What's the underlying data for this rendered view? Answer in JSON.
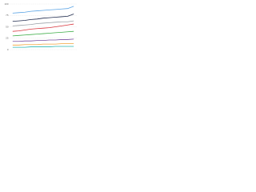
{
  "chart_data": {
    "type": "line",
    "categories": [
      null,
      null,
      null,
      null,
      null,
      null,
      null,
      null,
      null,
      null,
      null
    ],
    "series": [
      {
        "color": "#5ba4e5",
        "values": [
          80,
          81,
          82,
          84,
          85,
          86,
          87,
          88,
          89,
          90,
          95
        ]
      },
      {
        "color": "#1f2a4d",
        "values": [
          62,
          63,
          64,
          66,
          67,
          69,
          70,
          71,
          72,
          73,
          78
        ]
      },
      {
        "color": "#9aa0a6",
        "values": [
          52,
          53,
          54,
          55,
          57,
          58,
          59,
          60,
          61,
          61,
          63
        ]
      },
      {
        "color": "#d9363e",
        "values": [
          40,
          41,
          43,
          45,
          46,
          47,
          48,
          50,
          52,
          54,
          56
        ]
      },
      {
        "color": "#3fae49",
        "values": [
          30,
          31,
          32,
          33,
          34,
          35,
          36,
          37,
          38,
          39,
          40
        ]
      },
      {
        "color": "#7b4fa0",
        "values": [
          18,
          18,
          19,
          19,
          20,
          20,
          21,
          21,
          22,
          22,
          23
        ]
      },
      {
        "color": "#f2a33a",
        "values": [
          10,
          10,
          11,
          11,
          11,
          12,
          12,
          12,
          13,
          13,
          13
        ]
      },
      {
        "color": "#2bb6b0",
        "values": [
          5,
          5,
          5,
          6,
          6,
          6,
          6,
          7,
          7,
          7,
          7
        ]
      }
    ],
    "ylim": [
      0,
      100
    ],
    "yticks": [
      0,
      25,
      50,
      75,
      100
    ],
    "grid": true
  }
}
